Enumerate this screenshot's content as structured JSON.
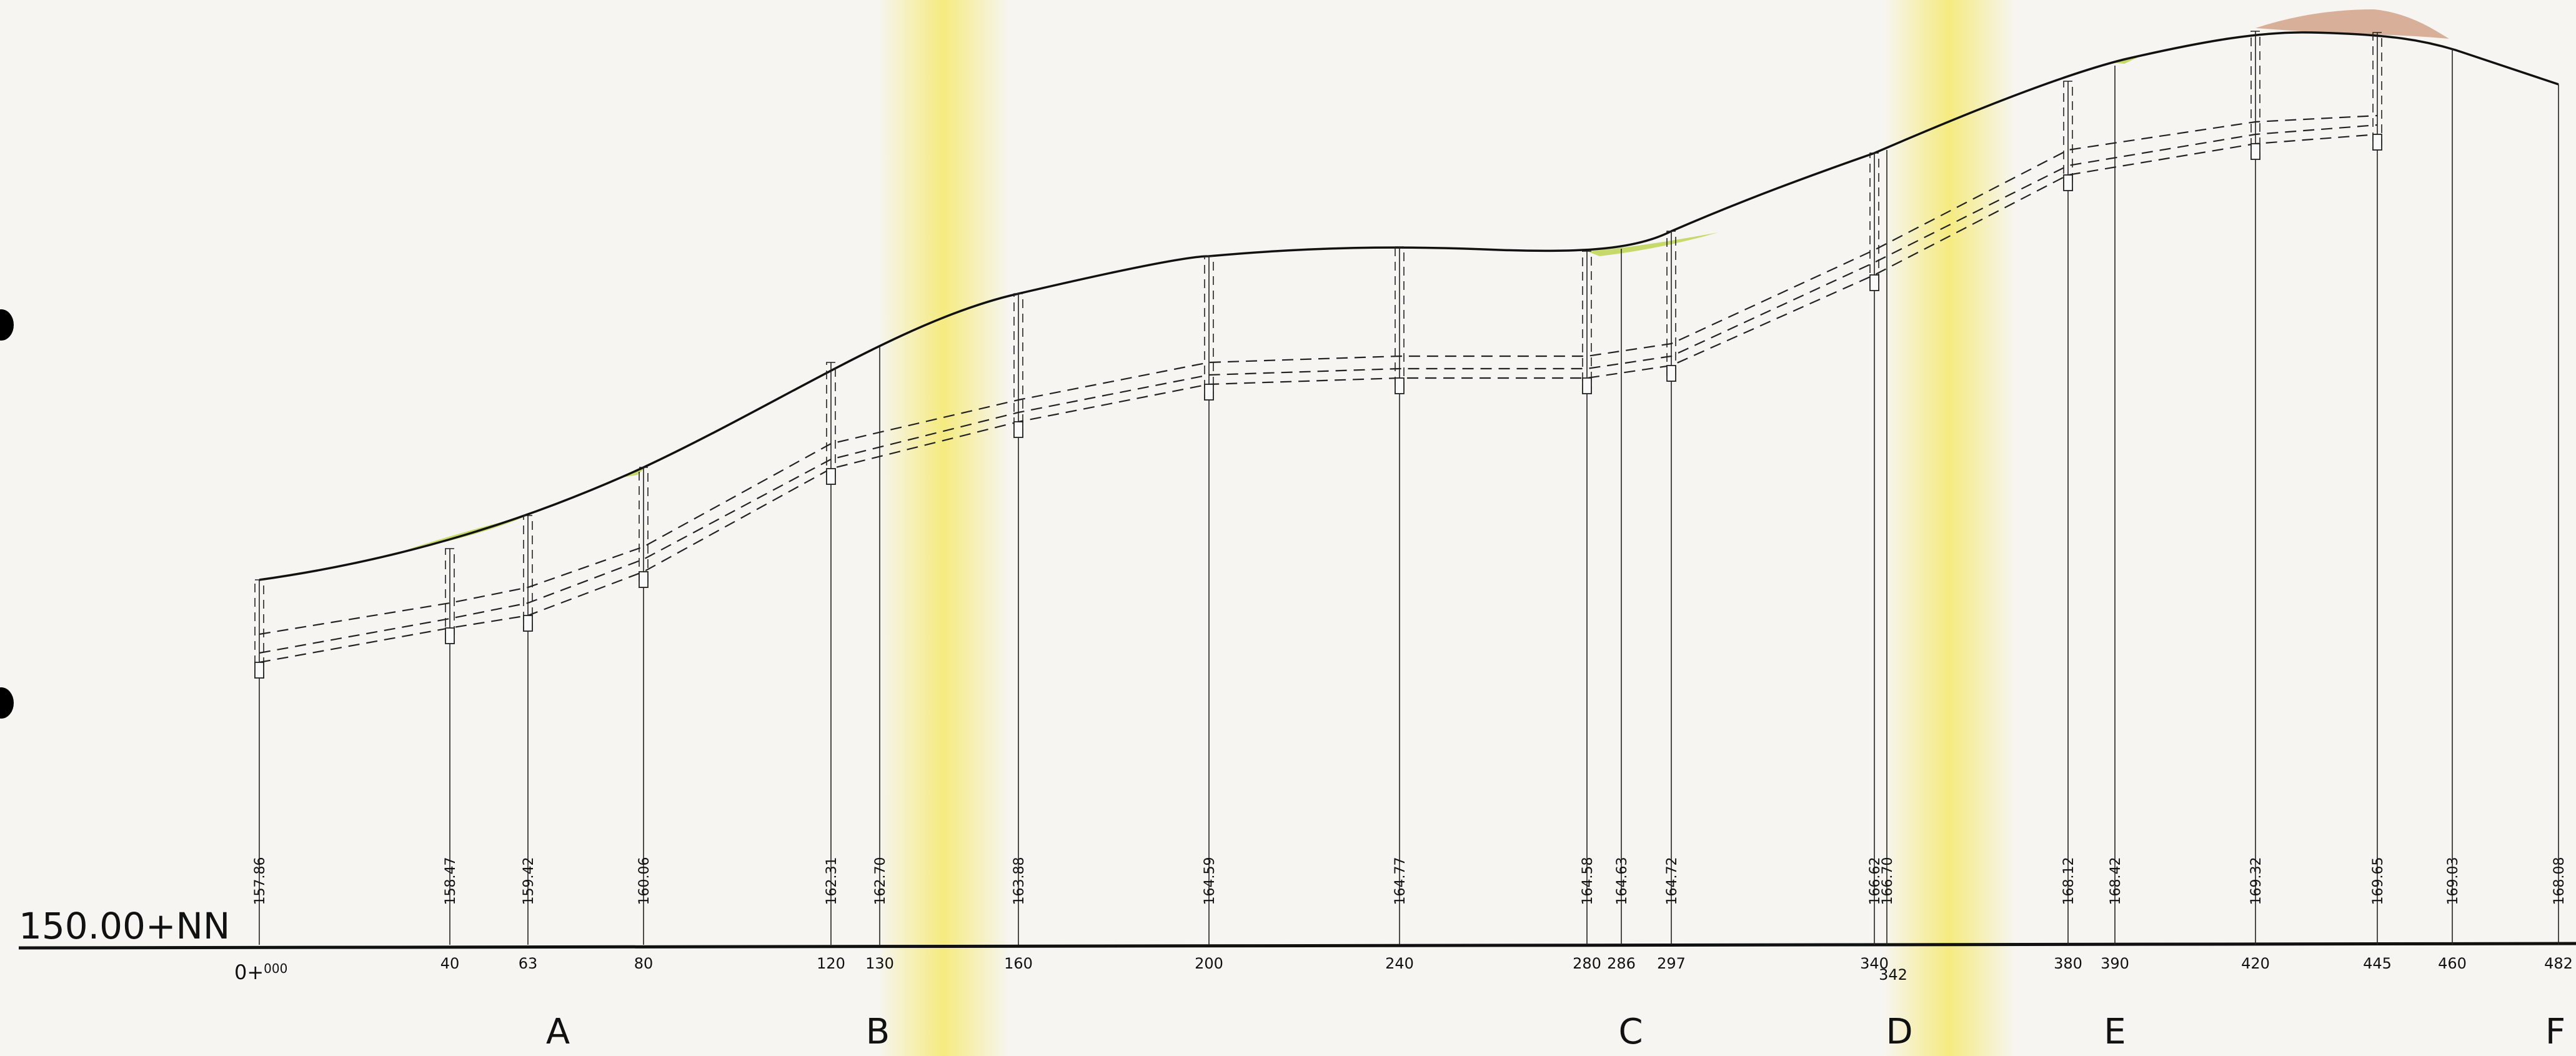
{
  "datum": "150.00+NN",
  "chainage_start_prefix": "0+",
  "chainage_start_suffix": "000",
  "stations": [
    {
      "id": "st-0",
      "chainage": "",
      "elevation": "157.86"
    },
    {
      "id": "st-40",
      "chainage": "40",
      "elevation": "158.47"
    },
    {
      "id": "st-63",
      "chainage": "63",
      "elevation": "159.42"
    },
    {
      "id": "st-80",
      "chainage": "80",
      "elevation": "160.06"
    },
    {
      "id": "st-120",
      "chainage": "120",
      "elevation": "162.31"
    },
    {
      "id": "st-130",
      "chainage": "130",
      "elevation": "162.70"
    },
    {
      "id": "st-160",
      "chainage": "160",
      "elevation": "163.88"
    },
    {
      "id": "st-200",
      "chainage": "200",
      "elevation": "164.59"
    },
    {
      "id": "st-240",
      "chainage": "240",
      "elevation": "164.77"
    },
    {
      "id": "st-280",
      "chainage": "280",
      "elevation": "164.58"
    },
    {
      "id": "st-286",
      "chainage": "286",
      "elevation": "164.63"
    },
    {
      "id": "st-297",
      "chainage": "297",
      "elevation": "164.72"
    },
    {
      "id": "st-340",
      "chainage": "340",
      "elevation": "166.62"
    },
    {
      "id": "st-342",
      "chainage": "342",
      "elevation": "166.70"
    },
    {
      "id": "st-380",
      "chainage": "380",
      "elevation": "168.12"
    },
    {
      "id": "st-390",
      "chainage": "390",
      "elevation": "168.42"
    },
    {
      "id": "st-420",
      "chainage": "420",
      "elevation": "169.32"
    },
    {
      "id": "st-445",
      "chainage": "445",
      "elevation": "169.65"
    },
    {
      "id": "st-460",
      "chainage": "460",
      "elevation": "169.03"
    },
    {
      "id": "st-482",
      "chainage": "482",
      "elevation": "168.08"
    }
  ],
  "sections": [
    "A",
    "B",
    "C",
    "D",
    "E",
    "F"
  ],
  "colors": {
    "paper": "#f6f5f1",
    "ink": "#111111",
    "highlight": "#f5ea7a",
    "fill_green": "#c6d96a",
    "fill_brown": "#d8b09a"
  }
}
